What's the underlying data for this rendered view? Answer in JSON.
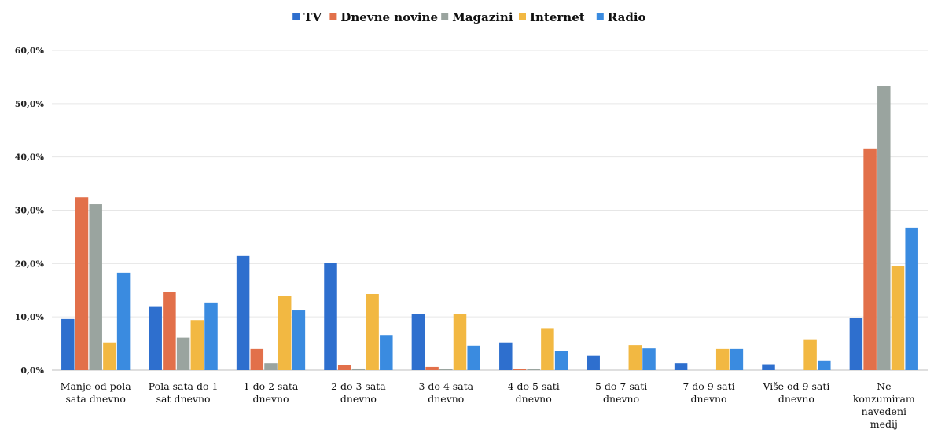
{
  "chart_data": {
    "type": "bar",
    "categories": [
      [
        "Manje od pola",
        "sata dnevno"
      ],
      [
        "Pola sata do 1",
        "sat dnevno"
      ],
      [
        "1 do 2 sata",
        "dnevno"
      ],
      [
        "2 do 3 sata",
        "dnevno"
      ],
      [
        "3 do 4 sata",
        "dnevno"
      ],
      [
        "4 do 5 sati",
        "dnevno"
      ],
      [
        "5 do 7 sati",
        "dnevno"
      ],
      [
        "7 do 9 sati",
        "dnevno"
      ],
      [
        "Više od 9 sati",
        "dnevno"
      ],
      [
        "Ne",
        "konzumiram",
        "navedeni",
        "medij"
      ]
    ],
    "series": [
      {
        "name": "TV",
        "color": "#2e6fce",
        "values": [
          9.6,
          12.0,
          21.4,
          20.1,
          10.6,
          5.2,
          2.7,
          1.3,
          1.1,
          9.8
        ]
      },
      {
        "name": "Dnevne novine",
        "color": "#e2704a",
        "values": [
          32.4,
          14.7,
          4.0,
          0.9,
          0.6,
          0.2,
          0.0,
          0.0,
          0.0,
          41.6
        ]
      },
      {
        "name": "Magazini",
        "color": "#9aa49f",
        "values": [
          31.1,
          6.1,
          1.3,
          0.3,
          0.2,
          0.2,
          0.0,
          0.0,
          0.0,
          53.3
        ]
      },
      {
        "name": "Internet",
        "color": "#f2b842",
        "values": [
          5.2,
          9.4,
          14.0,
          14.3,
          10.5,
          7.9,
          4.7,
          4.0,
          5.8,
          19.6
        ]
      },
      {
        "name": "Radio",
        "color": "#3a8be0",
        "values": [
          18.3,
          12.7,
          11.2,
          6.6,
          4.6,
          3.6,
          4.1,
          4.0,
          1.8,
          26.7
        ]
      }
    ],
    "y_ticks": [
      "0,0%",
      "10,0%",
      "20,0%",
      "30,0%",
      "40,0%",
      "50,0%",
      "60,0%"
    ],
    "ylim": [
      0,
      60
    ],
    "grid": true,
    "legend_position": "top-center",
    "title": "",
    "xlabel": "",
    "ylabel": ""
  }
}
